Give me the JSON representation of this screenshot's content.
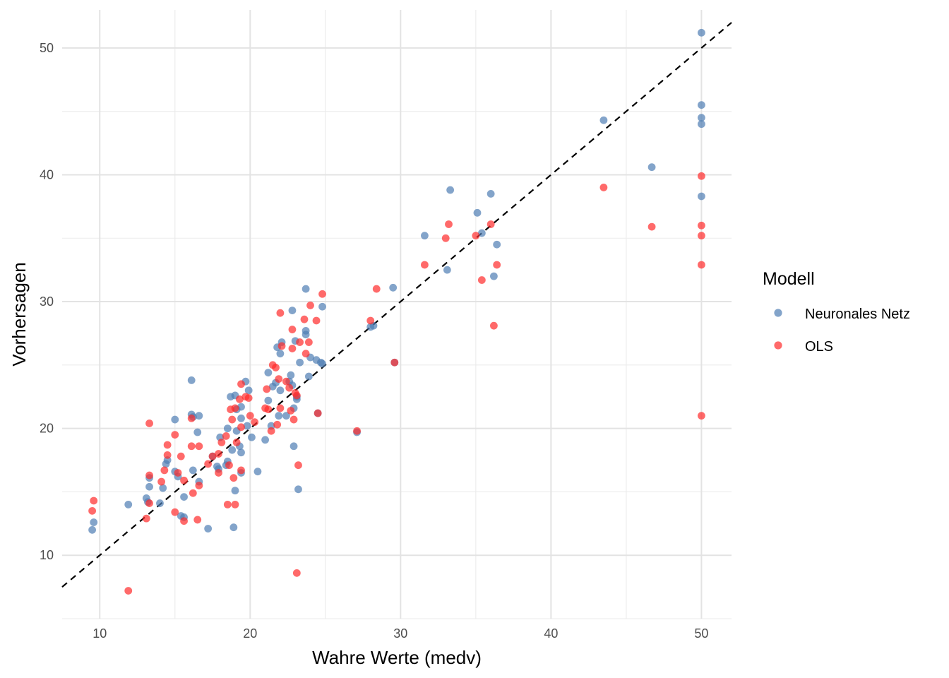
{
  "chart_data": {
    "type": "scatter",
    "xlabel": "Wahre Werte (medv)",
    "ylabel": "Vorhersagen",
    "xlim": [
      7.5,
      52
    ],
    "ylim": [
      5,
      53
    ],
    "x_ticks": [
      "10",
      "20",
      "30",
      "40",
      "50"
    ],
    "y_ticks": [
      "10",
      "20",
      "30",
      "40",
      "50"
    ],
    "grid": true,
    "legend": {
      "title": "Modell",
      "placement": "right"
    },
    "reference_line": {
      "style": "dashed",
      "color": "#000000",
      "slope": 1,
      "intercept": 0
    },
    "series": [
      {
        "name": "Neuronales Netz",
        "color": "#4f7eb3",
        "points": [
          [
            9.5,
            12.0
          ],
          [
            9.6,
            12.6
          ],
          [
            11.9,
            14.0
          ],
          [
            13.1,
            14.5
          ],
          [
            13.2,
            14.2
          ],
          [
            13.3,
            16.1
          ],
          [
            13.3,
            15.4
          ],
          [
            14.0,
            14.1
          ],
          [
            14.2,
            15.3
          ],
          [
            14.4,
            17.2
          ],
          [
            14.5,
            17.5
          ],
          [
            15.0,
            20.7
          ],
          [
            15.0,
            16.6
          ],
          [
            15.2,
            16.2
          ],
          [
            15.4,
            13.1
          ],
          [
            15.6,
            14.6
          ],
          [
            15.6,
            13.0
          ],
          [
            16.1,
            23.8
          ],
          [
            16.1,
            21.1
          ],
          [
            16.2,
            20.9
          ],
          [
            16.2,
            16.7
          ],
          [
            16.5,
            19.7
          ],
          [
            16.6,
            21.0
          ],
          [
            16.6,
            15.8
          ],
          [
            17.2,
            12.1
          ],
          [
            17.5,
            17.8
          ],
          [
            17.8,
            17.0
          ],
          [
            17.9,
            16.8
          ],
          [
            18.0,
            19.3
          ],
          [
            18.4,
            17.1
          ],
          [
            18.5,
            20.0
          ],
          [
            18.5,
            17.4
          ],
          [
            18.7,
            22.5
          ],
          [
            18.8,
            18.3
          ],
          [
            18.9,
            12.2
          ],
          [
            19.0,
            22.6
          ],
          [
            19.0,
            15.1
          ],
          [
            19.1,
            21.5
          ],
          [
            19.1,
            19.8
          ],
          [
            19.3,
            18.6
          ],
          [
            19.4,
            21.7
          ],
          [
            19.4,
            20.8
          ],
          [
            19.4,
            18.1
          ],
          [
            19.4,
            16.5
          ],
          [
            19.7,
            23.7
          ],
          [
            19.8,
            20.2
          ],
          [
            19.9,
            23.0
          ],
          [
            20.1,
            19.3
          ],
          [
            20.5,
            16.6
          ],
          [
            21.0,
            19.1
          ],
          [
            21.2,
            24.4
          ],
          [
            21.2,
            22.2
          ],
          [
            21.4,
            20.2
          ],
          [
            21.5,
            23.3
          ],
          [
            21.7,
            23.6
          ],
          [
            21.8,
            26.4
          ],
          [
            21.9,
            21.0
          ],
          [
            22.0,
            25.9
          ],
          [
            22.0,
            23.0
          ],
          [
            22.1,
            26.8
          ],
          [
            22.4,
            21.0
          ],
          [
            22.6,
            23.7
          ],
          [
            22.7,
            24.2
          ],
          [
            22.8,
            29.3
          ],
          [
            22.8,
            23.4
          ],
          [
            22.9,
            21.6
          ],
          [
            22.9,
            18.6
          ],
          [
            23.0,
            26.9
          ],
          [
            23.1,
            22.3
          ],
          [
            23.1,
            22.5
          ],
          [
            23.2,
            15.2
          ],
          [
            23.3,
            25.2
          ],
          [
            23.7,
            31.0
          ],
          [
            23.7,
            27.7
          ],
          [
            23.7,
            27.4
          ],
          [
            23.9,
            24.1
          ],
          [
            24.0,
            25.6
          ],
          [
            24.4,
            25.4
          ],
          [
            24.5,
            21.2
          ],
          [
            24.7,
            25.2
          ],
          [
            24.8,
            25.1
          ],
          [
            24.8,
            29.6
          ],
          [
            27.1,
            19.7
          ],
          [
            28.0,
            28.0
          ],
          [
            28.2,
            28.1
          ],
          [
            29.5,
            31.1
          ],
          [
            29.6,
            25.2
          ],
          [
            31.6,
            35.2
          ],
          [
            33.1,
            32.5
          ],
          [
            33.3,
            38.8
          ],
          [
            35.1,
            37.0
          ],
          [
            35.4,
            35.4
          ],
          [
            36.0,
            38.5
          ],
          [
            36.2,
            32.0
          ],
          [
            36.4,
            34.5
          ],
          [
            43.5,
            44.3
          ],
          [
            46.7,
            40.6
          ],
          [
            50.0,
            51.2
          ],
          [
            50.0,
            45.5
          ],
          [
            50.0,
            44.5
          ],
          [
            50.0,
            44.0
          ],
          [
            50.0,
            38.3
          ]
        ]
      },
      {
        "name": "OLS",
        "color": "#ff2b2b",
        "points": [
          [
            9.5,
            13.5
          ],
          [
            9.6,
            14.3
          ],
          [
            11.9,
            7.2
          ],
          [
            13.1,
            12.9
          ],
          [
            13.3,
            20.4
          ],
          [
            13.3,
            16.3
          ],
          [
            13.3,
            14.1
          ],
          [
            14.1,
            15.8
          ],
          [
            14.3,
            16.7
          ],
          [
            14.5,
            18.7
          ],
          [
            14.5,
            17.9
          ],
          [
            15.0,
            19.5
          ],
          [
            15.0,
            13.4
          ],
          [
            15.2,
            16.5
          ],
          [
            15.4,
            17.8
          ],
          [
            15.6,
            15.9
          ],
          [
            15.6,
            12.7
          ],
          [
            16.1,
            20.8
          ],
          [
            16.1,
            18.6
          ],
          [
            16.2,
            14.9
          ],
          [
            16.5,
            12.8
          ],
          [
            16.6,
            18.6
          ],
          [
            16.6,
            15.5
          ],
          [
            17.2,
            17.2
          ],
          [
            17.5,
            17.8
          ],
          [
            17.9,
            18.0
          ],
          [
            17.9,
            16.5
          ],
          [
            18.1,
            18.9
          ],
          [
            18.4,
            19.4
          ],
          [
            18.5,
            14.0
          ],
          [
            18.6,
            17.1
          ],
          [
            18.7,
            21.5
          ],
          [
            18.8,
            20.7
          ],
          [
            18.9,
            16.1
          ],
          [
            19.0,
            21.6
          ],
          [
            19.0,
            14.0
          ],
          [
            19.1,
            18.9
          ],
          [
            19.3,
            22.3
          ],
          [
            19.4,
            23.5
          ],
          [
            19.4,
            20.1
          ],
          [
            19.4,
            16.7
          ],
          [
            19.7,
            22.5
          ],
          [
            19.9,
            22.4
          ],
          [
            20.0,
            21.0
          ],
          [
            20.3,
            20.5
          ],
          [
            21.0,
            21.6
          ],
          [
            21.1,
            23.1
          ],
          [
            21.2,
            21.5
          ],
          [
            21.4,
            19.8
          ],
          [
            21.5,
            25.0
          ],
          [
            21.7,
            24.8
          ],
          [
            21.8,
            20.3
          ],
          [
            21.9,
            23.9
          ],
          [
            22.0,
            29.1
          ],
          [
            22.0,
            21.6
          ],
          [
            22.1,
            26.5
          ],
          [
            22.4,
            23.7
          ],
          [
            22.6,
            23.2
          ],
          [
            22.7,
            21.4
          ],
          [
            22.8,
            27.8
          ],
          [
            22.8,
            26.3
          ],
          [
            22.9,
            20.7
          ],
          [
            23.0,
            22.8
          ],
          [
            23.1,
            22.6
          ],
          [
            23.1,
            8.6
          ],
          [
            23.2,
            17.1
          ],
          [
            23.3,
            26.8
          ],
          [
            23.6,
            28.6
          ],
          [
            23.7,
            25.9
          ],
          [
            23.9,
            26.8
          ],
          [
            24.0,
            29.7
          ],
          [
            24.4,
            28.5
          ],
          [
            24.5,
            21.2
          ],
          [
            24.8,
            30.6
          ],
          [
            27.1,
            19.8
          ],
          [
            28.0,
            28.5
          ],
          [
            28.4,
            31.0
          ],
          [
            29.6,
            25.2
          ],
          [
            31.6,
            32.9
          ],
          [
            33.0,
            35.0
          ],
          [
            33.2,
            36.1
          ],
          [
            35.0,
            35.2
          ],
          [
            35.4,
            31.7
          ],
          [
            36.0,
            36.1
          ],
          [
            36.2,
            28.1
          ],
          [
            36.4,
            32.9
          ],
          [
            43.5,
            39.0
          ],
          [
            46.7,
            35.9
          ],
          [
            50.0,
            39.9
          ],
          [
            50.0,
            36.0
          ],
          [
            50.0,
            35.2
          ],
          [
            50.0,
            32.9
          ],
          [
            50.0,
            21.0
          ]
        ]
      }
    ]
  }
}
